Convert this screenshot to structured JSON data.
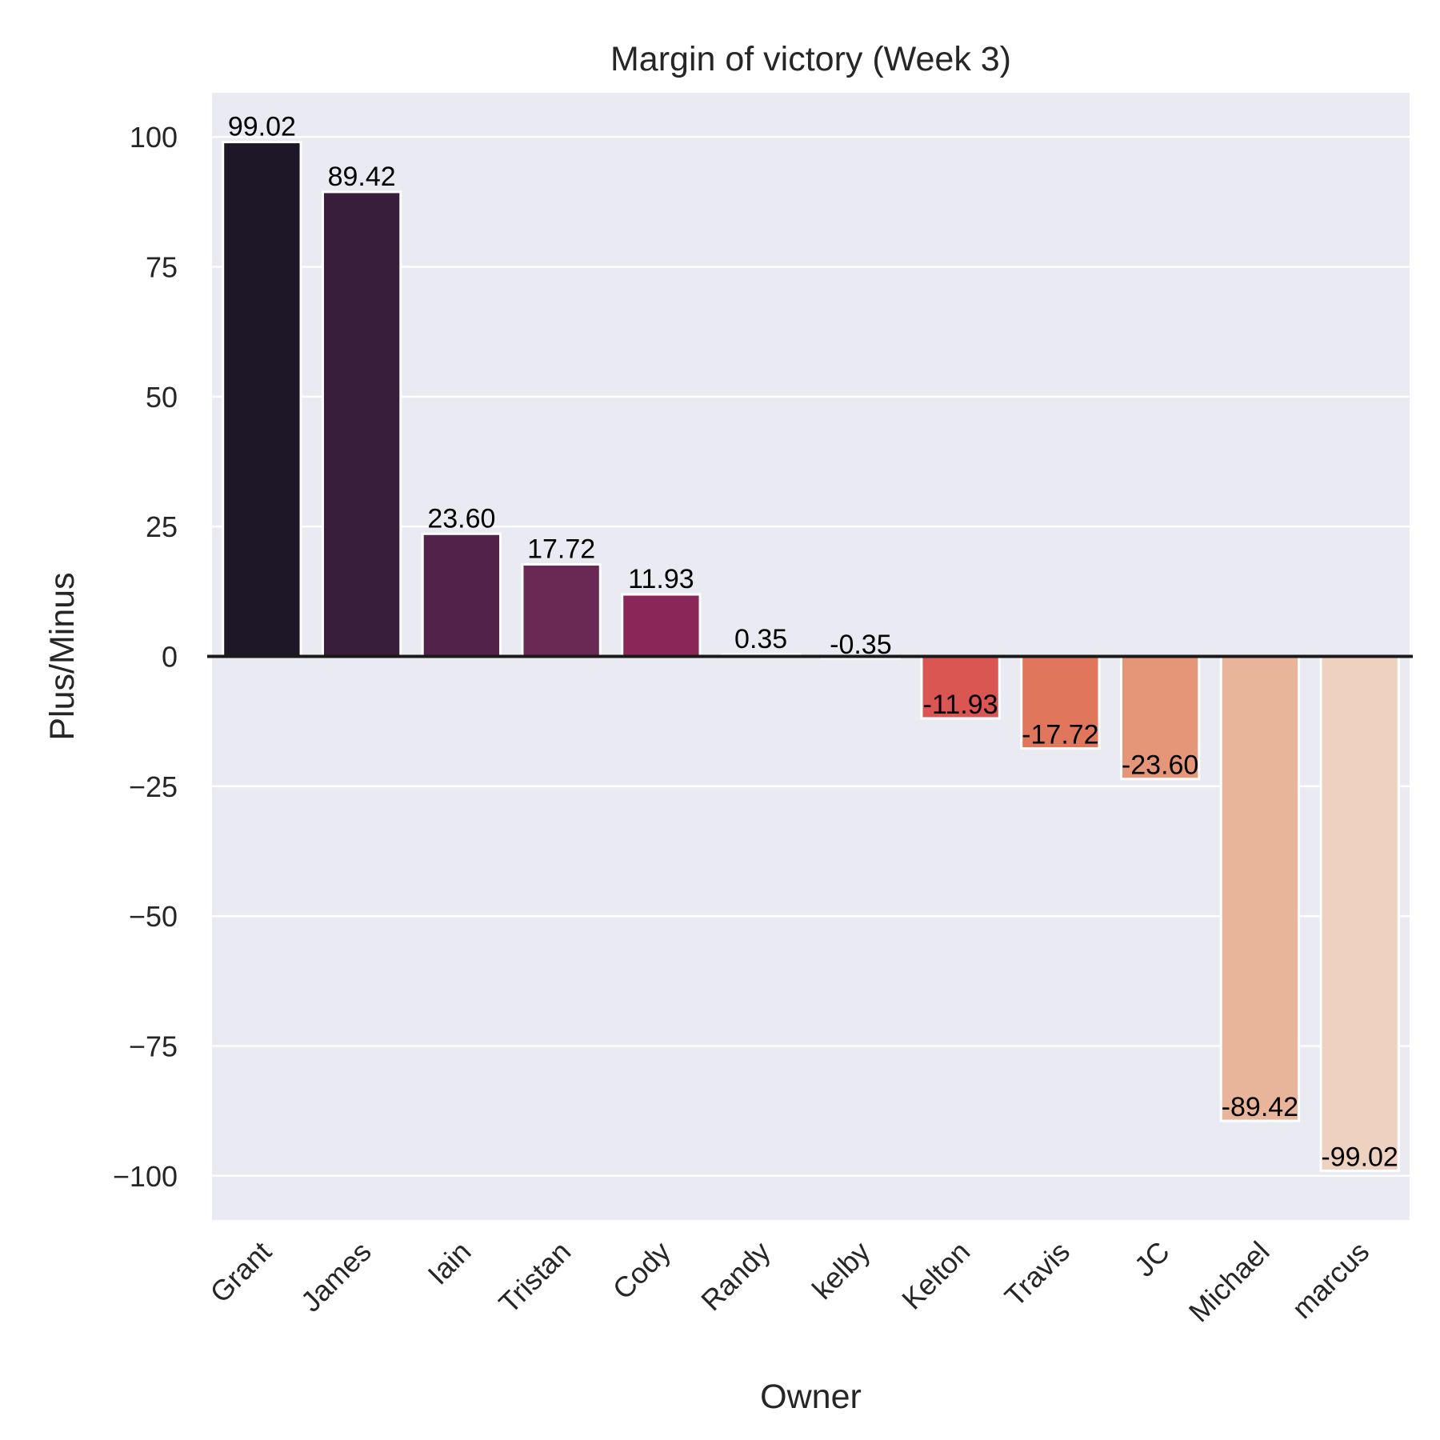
{
  "chart_data": {
    "type": "bar",
    "title": "Margin of victory (Week 3)",
    "xlabel": "Owner",
    "ylabel": "Plus/Minus",
    "categories": [
      "Grant",
      "James",
      "Iain",
      "Tristan",
      "Cody",
      "Randy",
      "kelby",
      "Kelton",
      "Travis",
      "JC",
      "Michael",
      "marcus"
    ],
    "values": [
      99.02,
      89.42,
      23.6,
      17.72,
      11.93,
      0.35,
      -0.35,
      -11.93,
      -17.72,
      -23.6,
      -89.42,
      -99.02
    ],
    "value_labels": [
      "99.02",
      "89.42",
      "23.60",
      "17.72",
      "11.93",
      "0.35",
      "-0.35",
      "-11.93",
      "-17.72",
      "-23.60",
      "-89.42",
      "-99.02"
    ],
    "ylim": [
      -108.5,
      108.5
    ],
    "yticks": [
      100,
      75,
      50,
      25,
      0,
      -25,
      -50,
      -75,
      -100
    ],
    "ytick_labels": [
      "100",
      "75",
      "50",
      "25",
      "0",
      "−25",
      "−50",
      "−75",
      "−100"
    ],
    "colors": [
      "#1e1728",
      "#381e3a",
      "#52224b",
      "#6a2854",
      "#8b2758",
      "#ad2356",
      "#cf3e51",
      "#d95652",
      "#e0775d",
      "#e59679",
      "#e8b59b",
      "#efd1bf"
    ],
    "grid": true,
    "legend": "none"
  }
}
